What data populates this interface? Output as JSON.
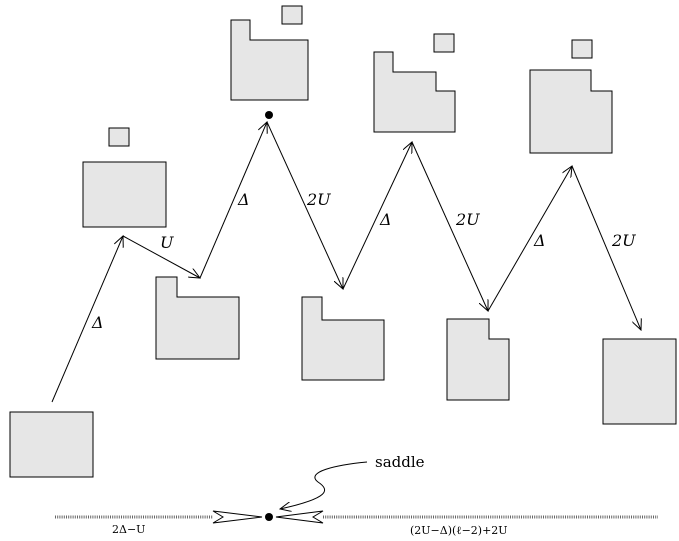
{
  "labels": {
    "delta_1": "Δ",
    "u_1": "U",
    "delta_2": "Δ",
    "two_u_1": "2U",
    "delta_3": "Δ",
    "two_u_2": "2U",
    "delta_4": "Δ",
    "two_u_3": "2U",
    "saddle": "saddle",
    "left_energy": "2Δ−U",
    "right_energy": "(2U−Δ)(ℓ−2)+2U"
  }
}
